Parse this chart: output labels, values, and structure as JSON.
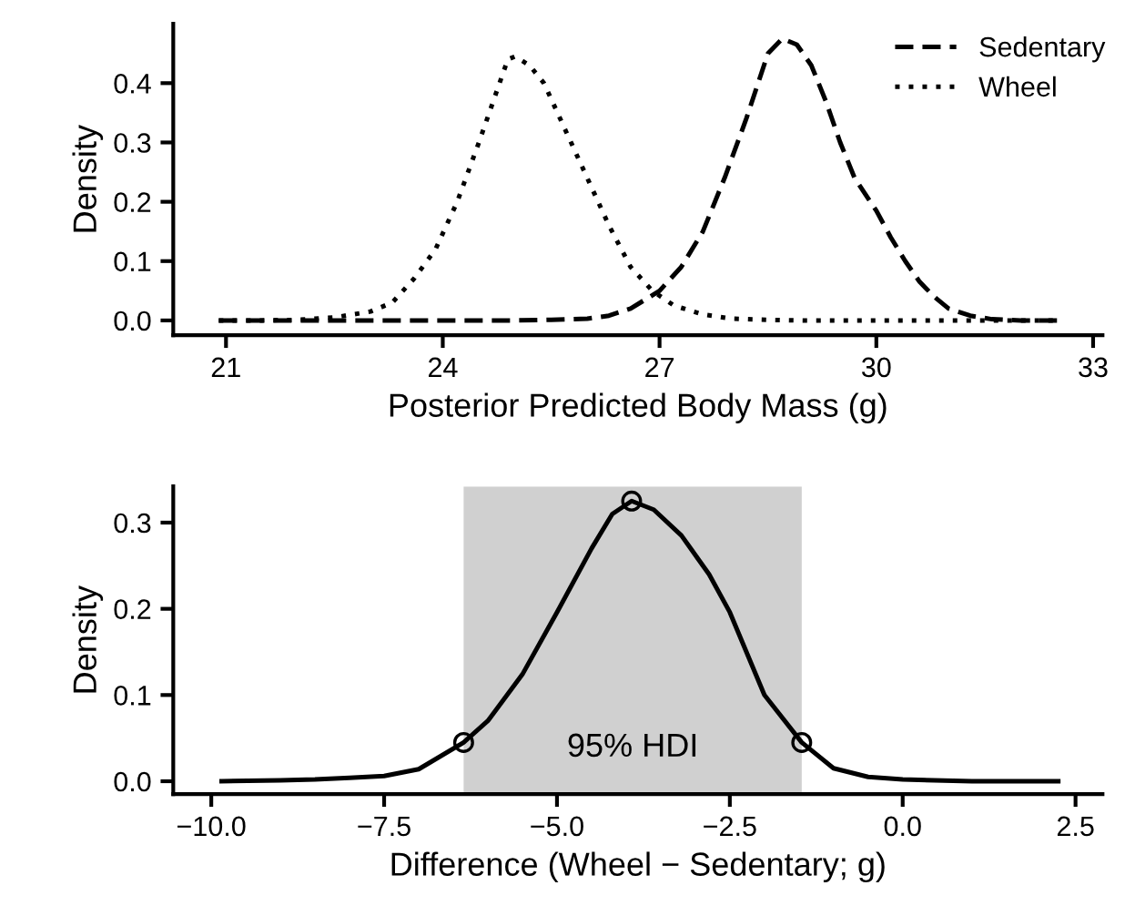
{
  "chart_data": [
    {
      "type": "line",
      "xlabel": "Posterior Predicted Body Mass (g)",
      "ylabel": "Density",
      "xlim": [
        20.27,
        33.13
      ],
      "ylim": [
        -0.025,
        0.5
      ],
      "xticks": [
        21,
        24,
        27,
        30,
        33
      ],
      "yticks": [
        {
          "value": 0,
          "label": "0.0"
        },
        {
          "value": 0.1,
          "label": "0.1"
        },
        {
          "value": 0.2,
          "label": "0.2"
        },
        {
          "value": 0.3,
          "label": "0.3"
        },
        {
          "value": 0.4,
          "label": "0.4"
        }
      ],
      "legend": "top right",
      "grid": false,
      "series": [
        {
          "name": "Sedentary",
          "color": "#000000",
          "line_style": "dashed",
          "x": [
            20.9,
            21.5,
            22,
            23,
            24,
            25,
            25.5,
            26,
            26.3,
            26.6,
            27,
            27.3,
            27.6,
            27.9,
            28.2,
            28.5,
            28.7,
            28.9,
            29.1,
            29.3,
            29.5,
            29.7,
            30,
            30.2,
            30.4,
            30.6,
            30.8,
            31,
            31.3,
            31.6,
            32,
            32.5
          ],
          "values": [
            0,
            0,
            0,
            0,
            0,
            0,
            0.001,
            0.003,
            0.008,
            0.02,
            0.05,
            0.09,
            0.15,
            0.24,
            0.34,
            0.45,
            0.475,
            0.465,
            0.43,
            0.37,
            0.3,
            0.24,
            0.185,
            0.14,
            0.1,
            0.065,
            0.04,
            0.02,
            0.008,
            0.002,
            0,
            0
          ]
        },
        {
          "name": "Wheel",
          "color": "#000000",
          "line_style": "dotted",
          "x": [
            20.9,
            21.5,
            22,
            22.5,
            23,
            23.3,
            23.6,
            23.9,
            24.2,
            24.5,
            24.7,
            24.9,
            25,
            25.2,
            25.4,
            25.7,
            26,
            26.3,
            26.6,
            26.9,
            27.2,
            27.6,
            28,
            28.5,
            29,
            30,
            31,
            32,
            32.5
          ],
          "values": [
            0,
            0,
            0.001,
            0.005,
            0.015,
            0.03,
            0.07,
            0.12,
            0.2,
            0.3,
            0.37,
            0.44,
            0.445,
            0.43,
            0.4,
            0.32,
            0.24,
            0.16,
            0.09,
            0.05,
            0.025,
            0.01,
            0.003,
            0.001,
            0,
            0,
            0,
            0,
            0
          ]
        }
      ]
    },
    {
      "type": "line",
      "xlabel": "Difference (Wheel − Sedentary; g)",
      "ylabel": "Density",
      "xlim": [
        -10.55,
        2.89
      ],
      "ylim": [
        -0.015,
        0.342
      ],
      "xticks": [
        {
          "value": -10,
          "label": "−10.0"
        },
        {
          "value": -7.5,
          "label": "−7.5"
        },
        {
          "value": -5,
          "label": "−5.0"
        },
        {
          "value": -2.5,
          "label": "−2.5"
        },
        {
          "value": 0,
          "label": "0.0"
        },
        {
          "value": 2.5,
          "label": "2.5"
        }
      ],
      "yticks": [
        {
          "value": 0,
          "label": "0.0"
        },
        {
          "value": 0.1,
          "label": "0.1"
        },
        {
          "value": 0.2,
          "label": "0.2"
        },
        {
          "value": 0.3,
          "label": "0.3"
        }
      ],
      "grid": false,
      "legend": false,
      "bands": [
        {
          "axis": "x",
          "from": -6.35,
          "to": -1.46,
          "label": "95% HDI",
          "color": "#d0d0d0"
        }
      ],
      "series": [
        {
          "type": "line",
          "color": "#000000",
          "line_style": "solid",
          "x": [
            -9.85,
            -9,
            -8.5,
            -8,
            -7.5,
            -7,
            -6.35,
            -6,
            -5.5,
            -5,
            -4.5,
            -4.2,
            -3.92,
            -3.6,
            -3.2,
            -2.8,
            -2.5,
            -2,
            -1.46,
            -1,
            -0.5,
            0,
            1,
            2.25
          ],
          "values": [
            0,
            0.001,
            0.002,
            0.004,
            0.006,
            0.014,
            0.045,
            0.07,
            0.124,
            0.196,
            0.27,
            0.31,
            0.325,
            0.315,
            0.285,
            0.24,
            0.196,
            0.1,
            0.045,
            0.015,
            0.005,
            0.002,
            0,
            0
          ]
        },
        {
          "type": "scatter",
          "color": "#000000",
          "marker": "circle",
          "x": [
            -6.35,
            -3.92,
            -1.46
          ],
          "values": [
            0.045,
            0.325,
            0.045
          ]
        }
      ]
    }
  ]
}
